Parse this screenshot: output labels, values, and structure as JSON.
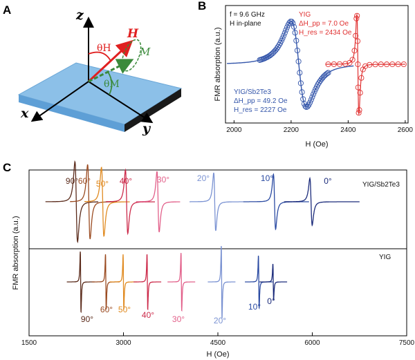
{
  "panel_labels": {
    "a": "A",
    "b": "B",
    "c": "C"
  },
  "panel_a": {
    "axis_z": "z",
    "axis_x": "x",
    "axis_y": "y",
    "vec_h": "H",
    "vec_m": "M",
    "theta_h": "θH",
    "theta_m": "θM",
    "colors": {
      "slab": "#8cc0e8",
      "H": "#e02020",
      "M": "#3b8a3b"
    }
  },
  "panel_b": {
    "legend_f": "f = 9.6 GHz",
    "legend_h": "H in-plane",
    "yig_label": "YIG",
    "yig_dh": "ΔH_pp = 7.0 Oe",
    "yig_hres": "H_res = 2434 Oe",
    "ybi_label": "YIG/Sb2Te3",
    "ybi_dh": "ΔH_pp = 49.2 Oe",
    "ybi_hres": "H_res = 2227 Oe"
  },
  "panel_c": {
    "label_top": "YIG/Sb2Te3",
    "label_bottom": "YIG"
  },
  "chart_data": [
    {
      "type": "line",
      "title": "",
      "xlabel": "H (Oe)",
      "ylabel": "FMR absorption (a.u.)",
      "xlim": [
        1970,
        2610
      ],
      "xticks": [
        2000,
        2200,
        2400,
        2600
      ],
      "series": [
        {
          "name": "YIG/Sb2Te3",
          "color": "#3355aa",
          "hres": 2227,
          "dHpp": 49.2
        },
        {
          "name": "YIG",
          "color": "#e03030",
          "hres": 2434,
          "dHpp": 7.0
        }
      ]
    },
    {
      "type": "line",
      "title": "",
      "xlabel": "H (Oe)",
      "ylabel": "FMR absorption (a.u.)",
      "xlim": [
        1500,
        7500
      ],
      "xticks": [
        1500,
        3000,
        4500,
        6000,
        7500
      ],
      "angles": [
        "90°",
        "60°",
        "50°",
        "40°",
        "30°",
        "20°",
        "10°",
        "0°"
      ],
      "colors": [
        "#5a2a1a",
        "#9a4a20",
        "#e08a20",
        "#cc2a4a",
        "#e2608a",
        "#7a92d2",
        "#2a4aa2",
        "#1a2a7a"
      ],
      "series": [
        {
          "name": "YIG/Sb2Te3",
          "hres": [
            2250,
            2450,
            2670,
            3050,
            3550,
            4450,
            5400,
            5980
          ]
        },
        {
          "name": "YIG",
          "hres": [
            2320,
            2720,
            3000,
            3380,
            3920,
            4560,
            5150,
            5380
          ]
        }
      ]
    }
  ]
}
